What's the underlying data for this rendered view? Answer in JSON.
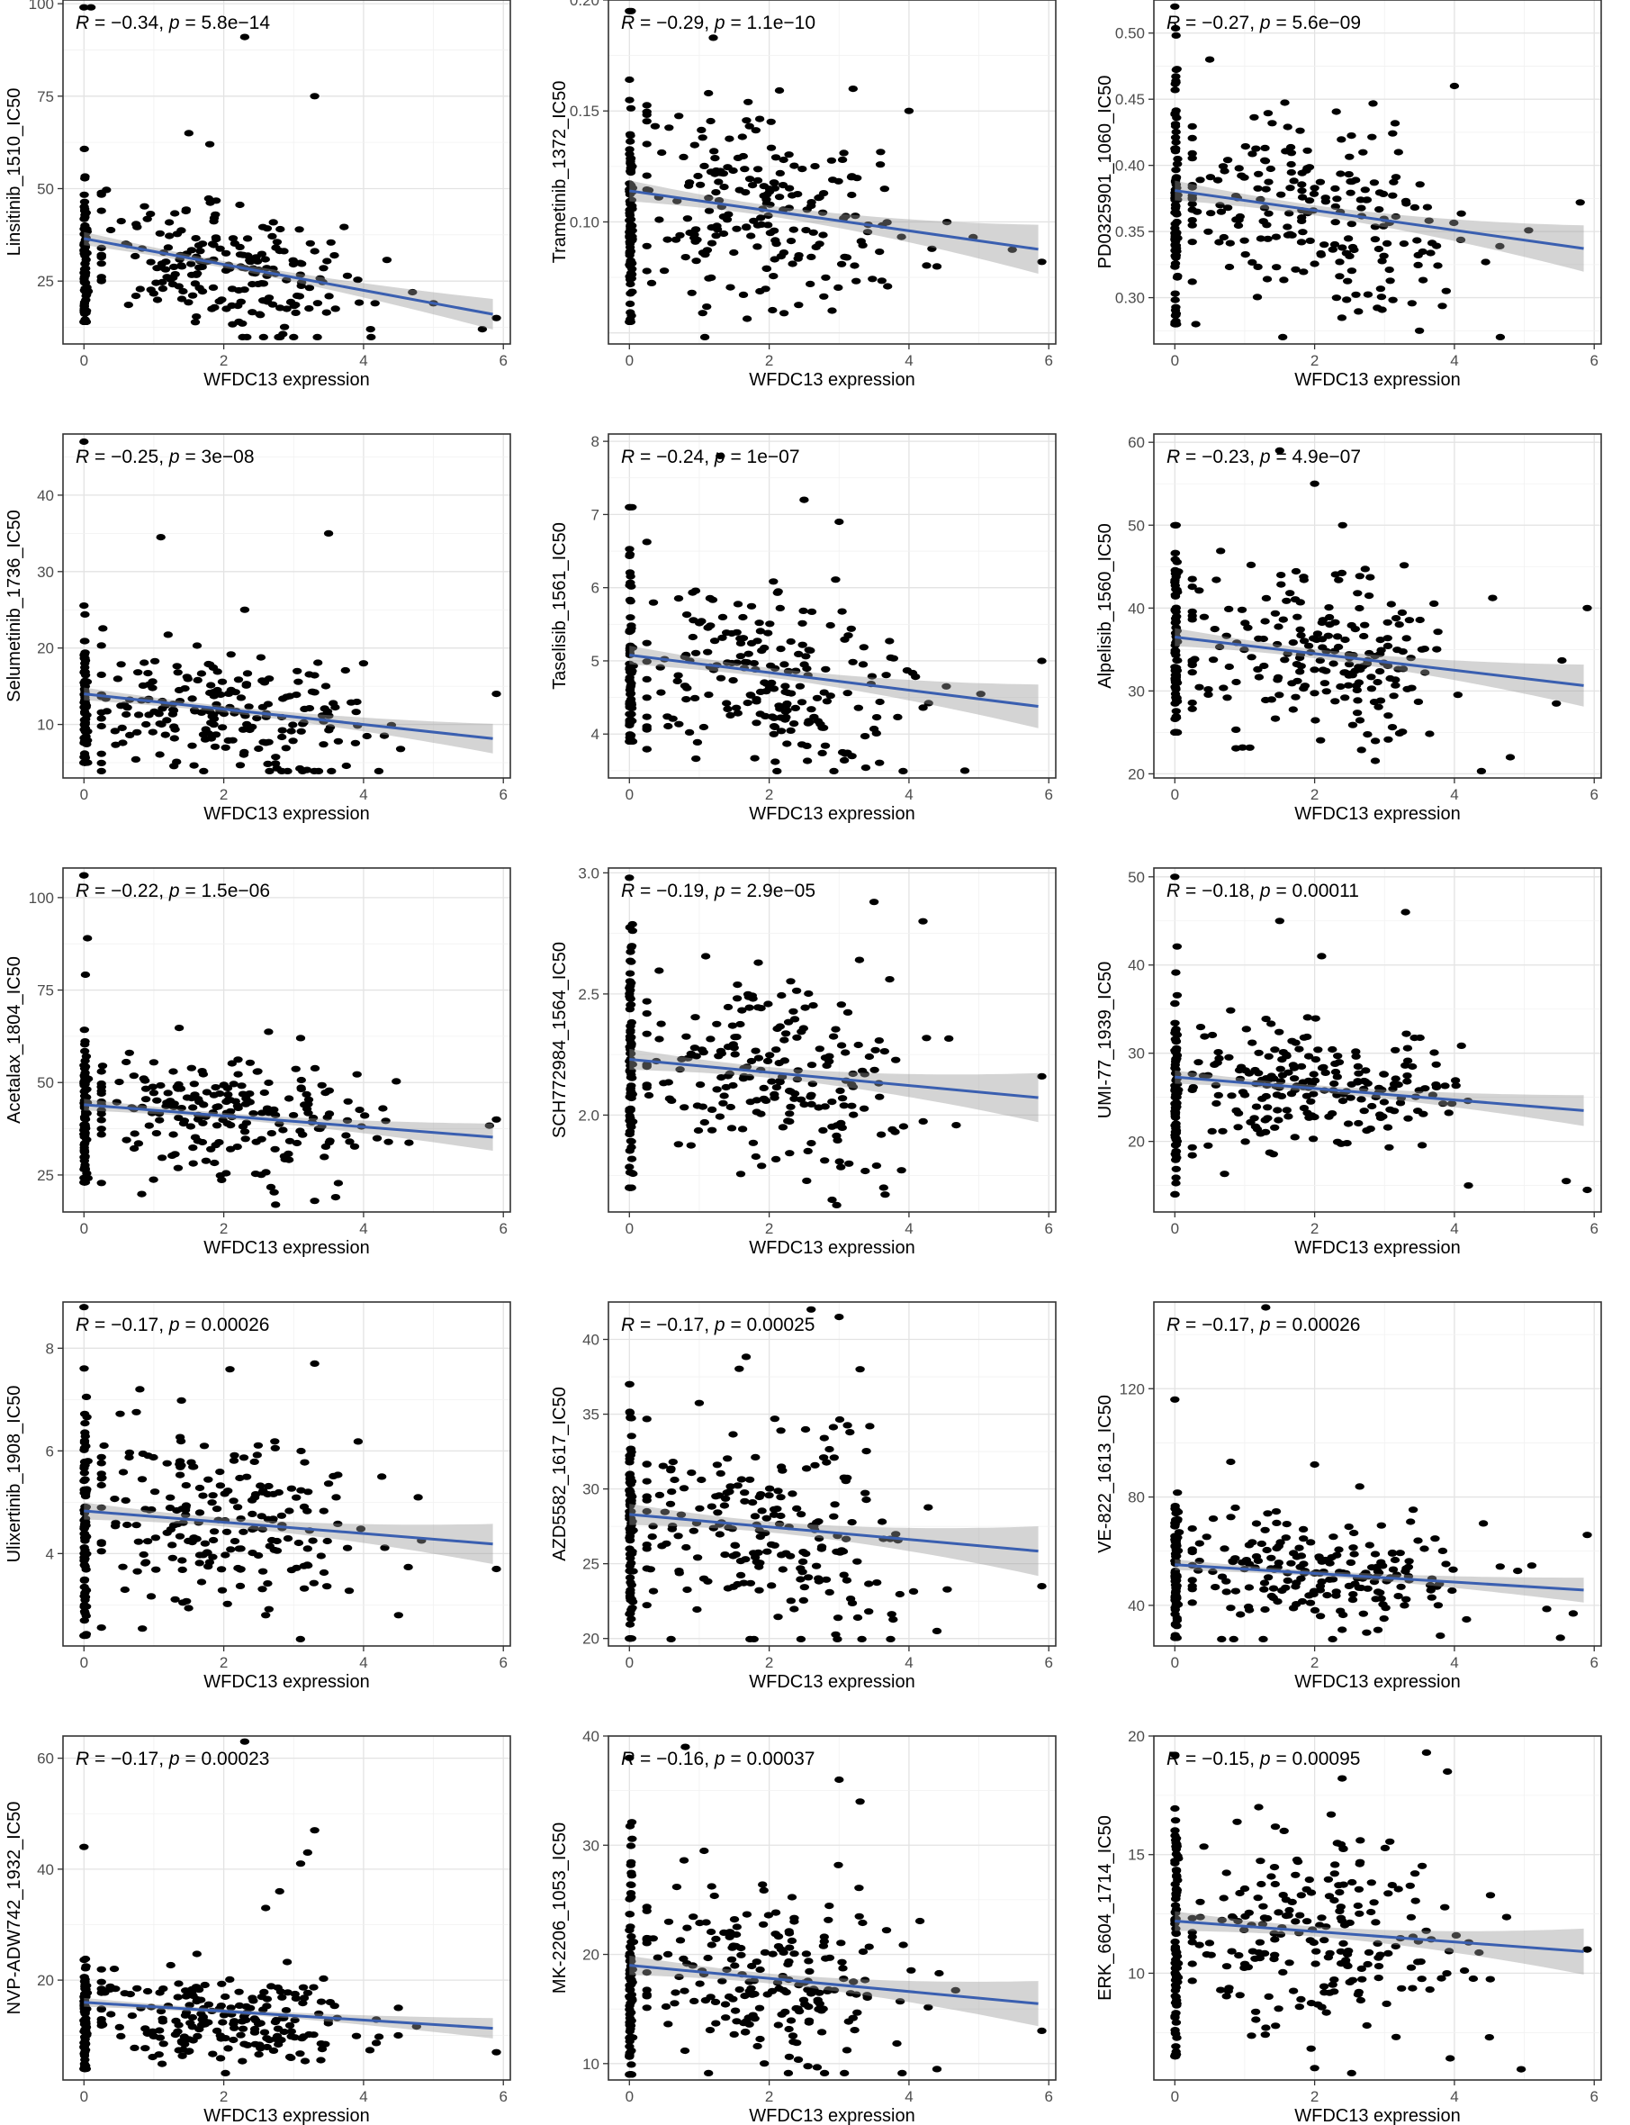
{
  "chart_data": [
    {
      "type": "scatter",
      "ylabel": "Linsitinib_1510_IC50",
      "xlabel": "WFDC13 expression",
      "annotation": "R = −0.34, p = 5.8e−14",
      "r_text": "R = −0.34, ",
      "p_text": "p = 5.8e−14",
      "xlim": [
        -0.3,
        6.1
      ],
      "ylim": [
        8,
        101
      ],
      "xticks": [
        0,
        2,
        4,
        6
      ],
      "yticks": [
        25,
        50,
        75,
        100
      ],
      "fit": {
        "intercept": 36.5,
        "slope": -3.5
      },
      "dist": {
        "n": 300,
        "mean": 29,
        "sd": 9,
        "zeroN": 90,
        "zeroMin": 14,
        "zeroMax": 99
      },
      "outliers": [
        [
          2.3,
          91
        ],
        [
          3.3,
          75
        ],
        [
          0.1,
          99
        ],
        [
          1.5,
          65
        ],
        [
          1.8,
          62
        ],
        [
          4.7,
          22
        ],
        [
          5.9,
          15
        ],
        [
          5.7,
          12
        ],
        [
          5.0,
          19
        ],
        [
          4.1,
          12
        ]
      ]
    },
    {
      "type": "scatter",
      "ylabel": "Trametinib_1372_IC50",
      "xlabel": "WFDC13 expression",
      "annotation": "R = −0.29, p = 1.1e−10",
      "r_text": "R = −0.29, ",
      "p_text": "p = 1.1e−10",
      "xlim": [
        -0.3,
        6.1
      ],
      "ylim": [
        0.045,
        0.2
      ],
      "xticks": [
        0,
        2,
        4,
        6
      ],
      "yticks": [
        0.1,
        0.15,
        0.2
      ],
      "fit": {
        "intercept": 0.114,
        "slope": -0.0045
      },
      "dist": {
        "n": 300,
        "mean": 0.104,
        "sd": 0.024,
        "zeroN": 90,
        "zeroMin": 0.055,
        "zeroMax": 0.195
      },
      "outliers": [
        [
          1.2,
          0.183
        ],
        [
          3.2,
          0.16
        ],
        [
          4.0,
          0.15
        ],
        [
          5.9,
          0.082
        ],
        [
          2.9,
          0.06
        ],
        [
          0.5,
          0.078
        ]
      ]
    },
    {
      "type": "scatter",
      "ylabel": "PD0325901_1060_IC50",
      "xlabel": "WFDC13 expression",
      "annotation": "R = −0.27, p = 5.6e−09",
      "r_text": "R = −0.27, ",
      "p_text": "p = 5.6e−09",
      "xlim": [
        -0.3,
        6.1
      ],
      "ylim": [
        0.265,
        0.525
      ],
      "xticks": [
        0,
        2,
        4,
        6
      ],
      "yticks": [
        0.3,
        0.35,
        0.4,
        0.45,
        0.5
      ],
      "fit": {
        "intercept": 0.381,
        "slope": -0.0075
      },
      "dist": {
        "n": 300,
        "mean": 0.365,
        "sd": 0.038,
        "zeroN": 90,
        "zeroMin": 0.28,
        "zeroMax": 0.52
      },
      "outliers": [
        [
          0.5,
          0.48
        ],
        [
          3.2,
          0.41
        ],
        [
          4.0,
          0.46
        ],
        [
          5.8,
          0.372
        ],
        [
          3.5,
          0.275
        ],
        [
          0.3,
          0.28
        ]
      ]
    },
    {
      "type": "scatter",
      "ylabel": "Selumetinib_1736_IC50",
      "xlabel": "WFDC13 expression",
      "annotation": "R = −0.25, p = 3e−08",
      "r_text": "R = −0.25, ",
      "p_text": "p = 3e−08",
      "xlim": [
        -0.3,
        6.1
      ],
      "ylim": [
        3,
        48
      ],
      "xticks": [
        0,
        2,
        4,
        6
      ],
      "yticks": [
        10,
        20,
        30,
        40
      ],
      "fit": {
        "intercept": 14,
        "slope": -1.0
      },
      "dist": {
        "n": 300,
        "mean": 11.5,
        "sd": 4.2,
        "zeroN": 90,
        "zeroMin": 5,
        "zeroMax": 47
      },
      "outliers": [
        [
          3.5,
          35
        ],
        [
          1.1,
          34.5
        ],
        [
          5.9,
          14
        ],
        [
          2.3,
          25
        ],
        [
          4.0,
          18
        ]
      ]
    },
    {
      "type": "scatter",
      "ylabel": "Taselisib_1561_IC50",
      "xlabel": "WFDC13 expression",
      "annotation": "R = −0.24, p = 1e−07",
      "r_text": "R = −0.24, ",
      "p_text": "p = 1e−07",
      "xlim": [
        -0.3,
        6.1
      ],
      "ylim": [
        3.4,
        8.1
      ],
      "xticks": [
        0,
        2,
        4,
        6
      ],
      "yticks": [
        4,
        5,
        6,
        7,
        8
      ],
      "fit": {
        "intercept": 5.08,
        "slope": -0.12
      },
      "dist": {
        "n": 300,
        "mean": 4.75,
        "sd": 0.65,
        "zeroN": 90,
        "zeroMin": 3.9,
        "zeroMax": 7.1
      },
      "outliers": [
        [
          1.3,
          7.8
        ],
        [
          2.5,
          7.2
        ],
        [
          3.0,
          6.9
        ],
        [
          5.9,
          5.0
        ],
        [
          4.8,
          3.5
        ]
      ]
    },
    {
      "type": "scatter",
      "ylabel": "Alpelisib_1560_IC50",
      "xlabel": "WFDC13 expression",
      "annotation": "R = −0.23, p = 4.9e−07",
      "r_text": "R = −0.23, ",
      "p_text": "p = 4.9e−07",
      "xlim": [
        -0.3,
        6.1
      ],
      "ylim": [
        19.5,
        61
      ],
      "xticks": [
        0,
        2,
        4,
        6
      ],
      "yticks": [
        20,
        30,
        40,
        50,
        60
      ],
      "fit": {
        "intercept": 36.5,
        "slope": -1.0
      },
      "dist": {
        "n": 300,
        "mean": 34,
        "sd": 5.5,
        "zeroN": 90,
        "zeroMin": 25,
        "zeroMax": 50
      },
      "outliers": [
        [
          1.5,
          59
        ],
        [
          2.0,
          55
        ],
        [
          2.4,
          50
        ],
        [
          5.9,
          40
        ],
        [
          4.8,
          22
        ]
      ]
    },
    {
      "type": "scatter",
      "ylabel": "Acetalax_1804_IC50",
      "xlabel": "WFDC13 expression",
      "annotation": "R = −0.22, p = 1.5e−06",
      "r_text": "R = −0.22, ",
      "p_text": "p = 1.5e−06",
      "xlim": [
        -0.3,
        6.1
      ],
      "ylim": [
        15,
        108
      ],
      "xticks": [
        0,
        2,
        4,
        6
      ],
      "yticks": [
        25,
        50,
        75,
        100
      ],
      "fit": {
        "intercept": 44,
        "slope": -1.5
      },
      "dist": {
        "n": 300,
        "mean": 41,
        "sd": 8,
        "zeroN": 90,
        "zeroMin": 23,
        "zeroMax": 106
      },
      "outliers": [
        [
          0.0,
          106
        ],
        [
          0.05,
          89
        ],
        [
          3.1,
          62
        ],
        [
          5.9,
          40
        ],
        [
          3.3,
          18
        ],
        [
          3.6,
          19
        ]
      ]
    },
    {
      "type": "scatter",
      "ylabel": "SCH772984_1564_IC50",
      "xlabel": "WFDC13 expression",
      "annotation": "R = −0.19, p = 2.9e−05",
      "r_text": "R = −0.19, ",
      "p_text": "p = 2.9e−05",
      "xlim": [
        -0.3,
        6.1
      ],
      "ylim": [
        1.6,
        3.02
      ],
      "xticks": [
        0,
        2,
        4,
        6
      ],
      "yticks": [
        2.0,
        2.5,
        3.0
      ],
      "fit": {
        "intercept": 2.23,
        "slope": -0.027
      },
      "dist": {
        "n": 300,
        "mean": 2.18,
        "sd": 0.22,
        "zeroN": 90,
        "zeroMin": 1.7,
        "zeroMax": 2.98
      },
      "outliers": [
        [
          3.5,
          2.88
        ],
        [
          4.2,
          2.8
        ],
        [
          5.9,
          2.16
        ],
        [
          2.9,
          1.65
        ],
        [
          0.0,
          1.7
        ]
      ]
    },
    {
      "type": "scatter",
      "ylabel": "UMI-77_1939_IC50",
      "xlabel": "WFDC13 expression",
      "annotation": "R = −0.18, p = 0.00011",
      "r_text": "R = −0.18, ",
      "p_text": "p = 0.00011",
      "xlim": [
        -0.3,
        6.1
      ],
      "ylim": [
        12,
        51
      ],
      "xticks": [
        0,
        2,
        4,
        6
      ],
      "yticks": [
        20,
        30,
        40,
        50
      ],
      "fit": {
        "intercept": 27.3,
        "slope": -0.65
      },
      "dist": {
        "n": 300,
        "mean": 26,
        "sd": 3.8,
        "zeroN": 90,
        "zeroMin": 14,
        "zeroMax": 50
      },
      "outliers": [
        [
          3.3,
          46
        ],
        [
          1.5,
          45
        ],
        [
          2.1,
          41
        ],
        [
          5.9,
          14.5
        ],
        [
          5.6,
          15.5
        ],
        [
          4.2,
          15
        ]
      ]
    },
    {
      "type": "scatter",
      "ylabel": "Ulixertinib_1908_IC50",
      "xlabel": "WFDC13 expression",
      "annotation": "R = −0.17, p = 0.00026",
      "r_text": "R = −0.17, ",
      "p_text": "p = 0.00026",
      "xlim": [
        -0.3,
        6.1
      ],
      "ylim": [
        2.2,
        8.9
      ],
      "xticks": [
        0,
        2,
        4,
        6
      ],
      "yticks": [
        4,
        6,
        8
      ],
      "fit": {
        "intercept": 4.83,
        "slope": -0.11
      },
      "dist": {
        "n": 300,
        "mean": 4.55,
        "sd": 0.85,
        "zeroN": 90,
        "zeroMin": 2.4,
        "zeroMax": 8.8
      },
      "outliers": [
        [
          3.3,
          7.7
        ],
        [
          0.8,
          7.2
        ],
        [
          5.9,
          3.7
        ],
        [
          4.5,
          2.8
        ],
        [
          2.6,
          2.8
        ]
      ]
    },
    {
      "type": "scatter",
      "ylabel": "AZD5582_1617_IC50",
      "xlabel": "WFDC13 expression",
      "annotation": "R = −0.17, p = 0.00025",
      "r_text": "R = −0.17, ",
      "p_text": "p = 0.00025",
      "xlim": [
        -0.3,
        6.1
      ],
      "ylim": [
        19.5,
        42.5
      ],
      "xticks": [
        0,
        2,
        4,
        6
      ],
      "yticks": [
        20,
        25,
        30,
        35,
        40
      ],
      "fit": {
        "intercept": 28.3,
        "slope": -0.42
      },
      "dist": {
        "n": 300,
        "mean": 27.5,
        "sd": 3.6,
        "zeroN": 90,
        "zeroMin": 20,
        "zeroMax": 37
      },
      "outliers": [
        [
          3.0,
          41.5
        ],
        [
          2.6,
          42
        ],
        [
          3.3,
          38
        ],
        [
          5.9,
          23.5
        ],
        [
          4.4,
          20.5
        ]
      ]
    },
    {
      "type": "scatter",
      "ylabel": "VE-822_1613_IC50",
      "xlabel": "WFDC13 expression",
      "annotation": "R = −0.17, p = 0.00026",
      "r_text": "R = −0.17, ",
      "p_text": "p = 0.00026",
      "xlim": [
        -0.3,
        6.1
      ],
      "ylim": [
        25,
        152
      ],
      "xticks": [
        0,
        2,
        4,
        6
      ],
      "yticks": [
        40,
        80,
        120
      ],
      "fit": {
        "intercept": 55,
        "slope": -1.6
      },
      "dist": {
        "n": 300,
        "mean": 52,
        "sd": 10,
        "zeroN": 90,
        "zeroMin": 28,
        "zeroMax": 116
      },
      "outliers": [
        [
          1.3,
          150
        ],
        [
          0.8,
          93
        ],
        [
          2.0,
          92
        ],
        [
          5.9,
          66
        ],
        [
          5.7,
          37
        ]
      ]
    },
    {
      "type": "scatter",
      "ylabel": "NVP-ADW742_1932_IC50",
      "xlabel": "WFDC13 expression",
      "annotation": "R = −0.17, p = 0.00023",
      "r_text": "R = −0.17, ",
      "p_text": "p = 0.00023",
      "xlim": [
        -0.3,
        6.1
      ],
      "ylim": [
        2,
        64
      ],
      "xticks": [
        0,
        2,
        4,
        6
      ],
      "yticks": [
        20,
        40,
        60
      ],
      "fit": {
        "intercept": 16,
        "slope": -0.8
      },
      "dist": {
        "n": 300,
        "mean": 13,
        "sd": 4,
        "zeroN": 90,
        "zeroMin": 4,
        "zeroMax": 44
      },
      "outliers": [
        [
          2.3,
          63
        ],
        [
          3.3,
          47
        ],
        [
          3.2,
          43
        ],
        [
          3.1,
          41
        ],
        [
          2.8,
          36
        ],
        [
          2.6,
          33
        ],
        [
          5.9,
          7
        ]
      ]
    },
    {
      "type": "scatter",
      "ylabel": "MK-2206_1053_IC50",
      "xlabel": "WFDC13 expression",
      "annotation": "R = −0.16, p = 0.00037",
      "r_text": "R = −0.16, ",
      "p_text": "p = 0.00037",
      "xlim": [
        -0.3,
        6.1
      ],
      "ylim": [
        8.5,
        40
      ],
      "xticks": [
        0,
        2,
        4,
        6
      ],
      "yticks": [
        10,
        20,
        30,
        40
      ],
      "fit": {
        "intercept": 19,
        "slope": -0.6
      },
      "dist": {
        "n": 300,
        "mean": 18,
        "sd": 4.5,
        "zeroN": 90,
        "zeroMin": 9,
        "zeroMax": 38
      },
      "outliers": [
        [
          0.8,
          39
        ],
        [
          3.0,
          36
        ],
        [
          3.3,
          34
        ],
        [
          5.9,
          13
        ],
        [
          4.4,
          9.5
        ]
      ]
    },
    {
      "type": "scatter",
      "ylabel": "ERK_6604_1714_IC50",
      "xlabel": "WFDC13 expression",
      "annotation": "R = −0.15, p = 0.00095",
      "r_text": "R = −0.15, ",
      "p_text": "p = 0.00095",
      "xlim": [
        -0.3,
        6.1
      ],
      "ylim": [
        5.5,
        20
      ],
      "xticks": [
        0,
        2,
        4,
        6
      ],
      "yticks": [
        10,
        15,
        20
      ],
      "fit": {
        "intercept": 12.2,
        "slope": -0.22
      },
      "dist": {
        "n": 300,
        "mean": 11.7,
        "sd": 2.1,
        "zeroN": 90,
        "zeroMin": 6.5,
        "zeroMax": 19.2
      },
      "outliers": [
        [
          3.6,
          19.3
        ],
        [
          3.9,
          18.5
        ],
        [
          1.2,
          17
        ],
        [
          5.9,
          11
        ],
        [
          2.0,
          6.0
        ],
        [
          4.5,
          7.3
        ]
      ]
    }
  ]
}
